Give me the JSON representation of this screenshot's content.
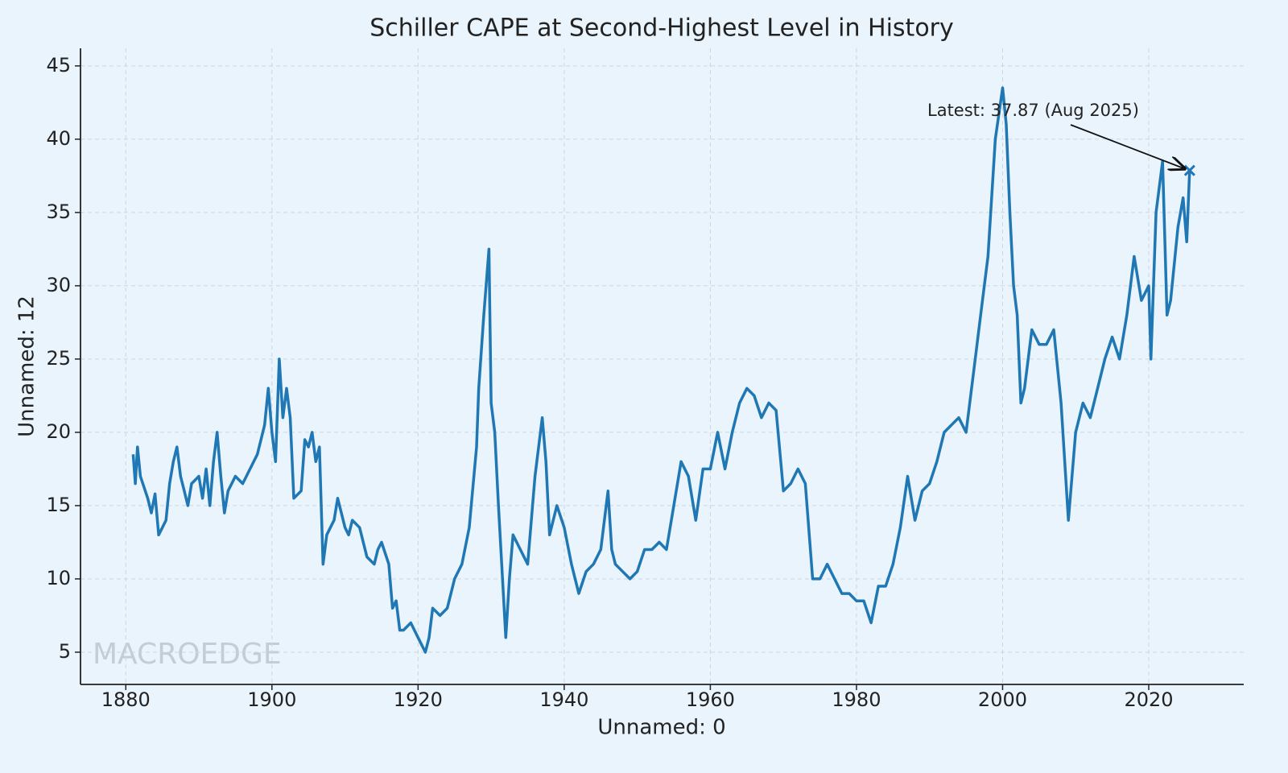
{
  "chart_data": {
    "type": "line",
    "title": "Schiller CAPE at Second-Highest Level in History",
    "x_label": "Unnamed: 0",
    "y_label": "Unnamed: 12",
    "watermark": "MACROEDGE",
    "annotation": "Latest: 37.87 (Aug 2025)",
    "x": [
      1881,
      1881.3,
      1881.6,
      1882,
      1883,
      1883.5,
      1884,
      1884.5,
      1885,
      1885.5,
      1886,
      1886.5,
      1887,
      1887.5,
      1888,
      1888.5,
      1889,
      1890,
      1890.5,
      1891,
      1891.5,
      1892,
      1892.5,
      1893,
      1893.5,
      1894,
      1895,
      1896,
      1897,
      1898,
      1899,
      1899.5,
      1900,
      1900.5,
      1901,
      1901.5,
      1902,
      1902.5,
      1903,
      1904,
      1904.5,
      1905,
      1905.5,
      1906,
      1906.5,
      1907,
      1907.5,
      1908,
      1908.5,
      1909,
      1910,
      1910.5,
      1911,
      1912,
      1913,
      1914,
      1914.5,
      1915,
      1916,
      1916.5,
      1917,
      1917.5,
      1918,
      1919,
      1920,
      1921,
      1921.5,
      1922,
      1923,
      1924,
      1925,
      1926,
      1927,
      1928,
      1928.3,
      1929,
      1929.7,
      1930,
      1930.5,
      1931,
      1932,
      1932.5,
      1933,
      1934,
      1935,
      1936,
      1937,
      1937.5,
      1938,
      1939,
      1940,
      1941,
      1942,
      1943,
      1944,
      1945,
      1946,
      1946.5,
      1947,
      1948,
      1949,
      1950,
      1951,
      1952,
      1953,
      1954,
      1955,
      1956,
      1957,
      1958,
      1959,
      1960,
      1961,
      1962,
      1963,
      1964,
      1965,
      1966,
      1967,
      1968,
      1969,
      1970,
      1971,
      1972,
      1973,
      1974,
      1975,
      1976,
      1977,
      1978,
      1979,
      1980,
      1981,
      1982,
      1983,
      1984,
      1985,
      1986,
      1987,
      1988,
      1989,
      1990,
      1991,
      1992,
      1993,
      1994,
      1995,
      1996,
      1997,
      1998,
      1999,
      2000,
      2000.5,
      2001,
      2001.5,
      2002,
      2002.5,
      2003,
      2004,
      2005,
      2006,
      2007,
      2008,
      2009,
      2009.5,
      2010,
      2011,
      2012,
      2013,
      2014,
      2015,
      2016,
      2017,
      2018,
      2019,
      2020,
      2020.3,
      2021,
      2021.9,
      2022.5,
      2023,
      2024,
      2024.7,
      2025.2,
      2025.6
    ],
    "series": [
      {
        "name": "Unnamed: 12",
        "color": "#1f77b4",
        "values": [
          18.5,
          16.5,
          19,
          17,
          15.5,
          14.5,
          15.8,
          13,
          13.5,
          14,
          16.5,
          18,
          19,
          17,
          16,
          15,
          16.5,
          17,
          15.5,
          17.5,
          15,
          18,
          20,
          17,
          14.5,
          16,
          17,
          16.5,
          17.5,
          18.5,
          20.5,
          23,
          20,
          18,
          25,
          21,
          23,
          21,
          15.5,
          16,
          19.5,
          19,
          20,
          18,
          19,
          11,
          13,
          13.5,
          14,
          15.5,
          13.5,
          13,
          14,
          13.5,
          11.5,
          11,
          12,
          12.5,
          11,
          8,
          8.5,
          6.5,
          6.5,
          7,
          6,
          5,
          6,
          8,
          7.5,
          8,
          10,
          11,
          13.5,
          19,
          23,
          28,
          32.5,
          22,
          20,
          15,
          6,
          10,
          13,
          12,
          11,
          17,
          21,
          18,
          13,
          15,
          13.5,
          11,
          9,
          10.5,
          11,
          12,
          16,
          12,
          11,
          10.5,
          10,
          10.5,
          12,
          12,
          12.5,
          12,
          15,
          18,
          17,
          14,
          17.5,
          17.5,
          20,
          17.5,
          20,
          22,
          23,
          22.5,
          21,
          22,
          21.5,
          16,
          16.5,
          17.5,
          16.5,
          10,
          10,
          11,
          10,
          9,
          9,
          8.5,
          8.5,
          7,
          9.5,
          9.5,
          11,
          13.5,
          17,
          14,
          16,
          16.5,
          18,
          20,
          20.5,
          21,
          20,
          24,
          28,
          32,
          40,
          43.5,
          41,
          35,
          30,
          28,
          22,
          23,
          27,
          26,
          26,
          27,
          22,
          14,
          17,
          20,
          22,
          21,
          23,
          25,
          26.5,
          25,
          28,
          32,
          29,
          30,
          25,
          35,
          38.5,
          28,
          29,
          34,
          36,
          33,
          37.87
        ]
      }
    ],
    "xlim": [
      1873.8,
      2033
    ],
    "ylim": [
      2.8,
      46.2
    ],
    "xticks": [
      1880,
      1900,
      1920,
      1940,
      1960,
      1980,
      2000,
      2020
    ],
    "yticks": [
      5,
      10,
      15,
      20,
      25,
      30,
      35,
      40,
      45
    ],
    "grid": true
  }
}
